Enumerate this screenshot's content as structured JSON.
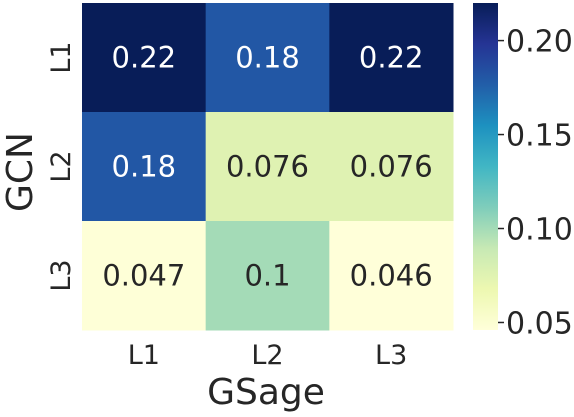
{
  "chart_data": {
    "type": "heatmap",
    "title": "",
    "xlabel": "GSage",
    "ylabel": "GCN",
    "x_categories": [
      "L1",
      "L2",
      "L3"
    ],
    "y_categories": [
      "L1",
      "L2",
      "L3"
    ],
    "values": [
      [
        0.22,
        0.18,
        0.22
      ],
      [
        0.18,
        0.076,
        0.076
      ],
      [
        0.047,
        0.1,
        0.046
      ]
    ],
    "value_labels": [
      [
        "0.22",
        "0.18",
        "0.22"
      ],
      [
        "0.18",
        "0.076",
        "0.076"
      ],
      [
        "0.047",
        "0.1",
        "0.046"
      ]
    ],
    "colormap": "YlGnBu",
    "colorbar": {
      "range": [
        0.046,
        0.22
      ],
      "ticks": [
        0.05,
        0.1,
        0.15,
        0.2
      ],
      "tick_labels": [
        "0.05",
        "0.10",
        "0.15",
        "0.20"
      ]
    },
    "grid": false,
    "legend": "colorbar-right"
  }
}
